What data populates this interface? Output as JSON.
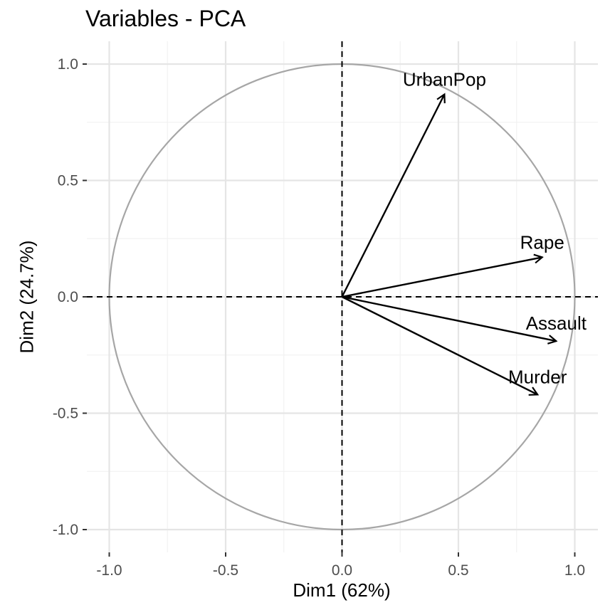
{
  "chart_data": {
    "type": "scatter",
    "title": "Variables - PCA",
    "xlabel": "Dim1 (62%)",
    "ylabel": "Dim2 (24.7%)",
    "xlim": [
      -1.0,
      1.0
    ],
    "ylim": [
      -1.0,
      1.0
    ],
    "x_ticks": [
      "-1.0",
      "-0.5",
      "0.0",
      "0.5",
      "1.0"
    ],
    "y_ticks": [
      "1.0",
      "0.5",
      "0.0",
      "-0.5",
      "-1.0"
    ],
    "grid": true,
    "unit_circle": true,
    "reference_lines": {
      "x": 0,
      "y": 0,
      "style": "dashed"
    },
    "vectors": [
      {
        "label": "UrbanPop",
        "x": 0.44,
        "y": 0.87
      },
      {
        "label": "Rape",
        "x": 0.86,
        "y": 0.17
      },
      {
        "label": "Assault",
        "x": 0.92,
        "y": -0.19
      },
      {
        "label": "Murder",
        "x": 0.84,
        "y": -0.42
      }
    ],
    "colors": {
      "circle": "#a6a6a6",
      "grid_major": "#e5e5e5",
      "grid_minor": "#f2f2f2",
      "vectors": "#000000"
    }
  }
}
